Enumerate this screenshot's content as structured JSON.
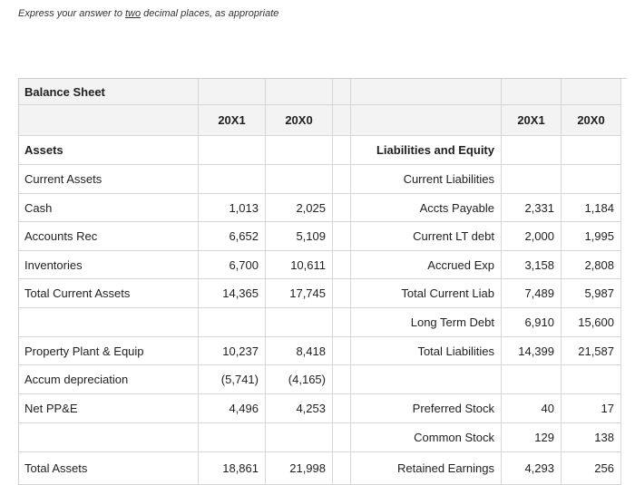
{
  "instruction": {
    "prefix": "Express your answer to ",
    "underlined": "two",
    "suffix": " decimal places, as appropriate"
  },
  "sheet": {
    "title": "Balance Sheet",
    "year1": "20X1",
    "year0": "20X0",
    "assets_heading": "Assets",
    "current_assets_heading": "Current Assets",
    "liab_heading": "Liabilities and Equity",
    "current_liab_heading": "Current Liabilities",
    "assets": [
      {
        "label": "Cash",
        "y1": "1,013",
        "y0": "2,025"
      },
      {
        "label": "Accounts Rec",
        "y1": "6,652",
        "y0": "5,109"
      },
      {
        "label": "Inventories",
        "y1": "6,700",
        "y0": "10,611"
      },
      {
        "label": "Total Current Assets",
        "y1": "14,365",
        "y0": "17,745"
      },
      {
        "label": "",
        "y1": "",
        "y0": ""
      },
      {
        "label": "Property Plant & Equip",
        "y1": "10,237",
        "y0": "8,418"
      },
      {
        "label": "Accum depreciation",
        "y1": "(5,741)",
        "y0": "(4,165)"
      },
      {
        "label": "Net PP&E",
        "y1": "4,496",
        "y0": "4,253"
      },
      {
        "label": "",
        "y1": "",
        "y0": ""
      },
      {
        "label": "Total Assets",
        "y1": "18,861",
        "y0": "21,998"
      }
    ],
    "liabilities": [
      {
        "label": "Accts Payable",
        "y1": "2,331",
        "y0": "1,184"
      },
      {
        "label": "Current LT debt",
        "y1": "2,000",
        "y0": "1,995"
      },
      {
        "label": "Accrued Exp",
        "y1": "3,158",
        "y0": "2,808"
      },
      {
        "label": "Total Current Liab",
        "y1": "7,489",
        "y0": "5,987"
      },
      {
        "label": "Long Term Debt",
        "y1": "6,910",
        "y0": "15,600"
      },
      {
        "label": "Total Liabilities",
        "y1": "14,399",
        "y0": "21,587"
      },
      {
        "label": "",
        "y1": "",
        "y0": ""
      },
      {
        "label": "Preferred Stock",
        "y1": "40",
        "y0": "17"
      },
      {
        "label": "Common Stock",
        "y1": "129",
        "y0": "138"
      },
      {
        "label": "Retained Earnings",
        "y1": "4,293",
        "y0": "256"
      }
    ]
  }
}
